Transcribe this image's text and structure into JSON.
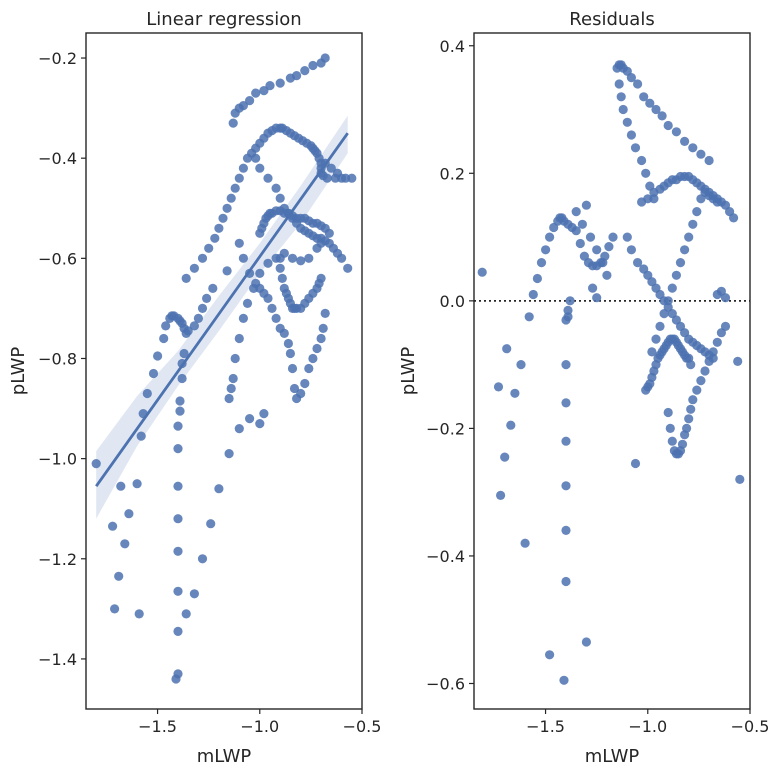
{
  "figure": {
    "colors": {
      "point": "#4c72b0",
      "line": "#4c72b0",
      "band": "#dbe3f1",
      "axes": "#262626",
      "zero_line": "#262626"
    }
  },
  "chart_data": [
    {
      "type": "scatter",
      "title": "Linear regression",
      "xlabel": "mLWP",
      "ylabel": "pLWP",
      "xlim": [
        -1.85,
        -0.5
      ],
      "ylim": [
        -1.5,
        -0.15
      ],
      "xticks": [
        -1.5,
        -1.0,
        -0.5
      ],
      "xtick_labels": [
        "−1.5",
        "−1.0",
        "−0.5"
      ],
      "yticks": [
        -1.4,
        -1.2,
        -1.0,
        -0.8,
        -0.6,
        -0.4,
        -0.2
      ],
      "ytick_labels": [
        "−1.4",
        "−1.2",
        "−1.0",
        "−0.8",
        "−0.6",
        "−0.4",
        "−0.2"
      ],
      "grid": false,
      "regression_line": {
        "x": [
          -1.8,
          -0.57
        ],
        "y": [
          -1.055,
          -0.35
        ]
      },
      "confidence_band": {
        "x": [
          -1.8,
          -1.6,
          -1.4,
          -1.2,
          -1.0,
          -0.8,
          -0.57
        ],
        "lower": [
          -1.12,
          -0.975,
          -0.855,
          -0.745,
          -0.63,
          -0.53,
          -0.39
        ],
        "upper": [
          -0.985,
          -0.875,
          -0.785,
          -0.675,
          -0.57,
          -0.455,
          -0.315
        ]
      },
      "points": {
        "x": [
          -1.8,
          -1.72,
          -1.71,
          -1.69,
          -1.68,
          -1.66,
          -1.64,
          -1.6,
          -1.59,
          -1.58,
          -1.57,
          -1.55,
          -1.52,
          -1.5,
          -1.47,
          -1.46,
          -1.44,
          -1.43,
          -1.42,
          -1.4,
          -1.39,
          -1.38,
          -1.37,
          -1.36,
          -1.35,
          -1.32,
          -1.3,
          -1.28,
          -1.26,
          -1.23,
          -1.16,
          -1.4,
          -1.4,
          -1.4,
          -1.4,
          -1.4,
          -1.4,
          -1.4,
          -1.39,
          -1.39,
          -1.38,
          -1.37,
          -1.38,
          -1.4,
          -1.41,
          -1.36,
          -1.32,
          -1.28,
          -1.24,
          -1.2,
          -1.15,
          -1.1,
          -1.05,
          -1.0,
          -0.98,
          -1.15,
          -1.14,
          -1.13,
          -1.12,
          -1.1,
          -1.08,
          -1.06,
          -1.03,
          -1.0,
          -0.96,
          -0.92,
          -0.88,
          -0.84,
          -0.8,
          -0.76,
          -0.72,
          -0.7,
          -1.13,
          -1.12,
          -1.1,
          -1.08,
          -1.05,
          -1.02,
          -0.98,
          -0.95,
          -0.9,
          -0.85,
          -0.82,
          -0.78,
          -0.74,
          -0.7,
          -0.68,
          -1.02,
          -1.0,
          -0.96,
          -0.92,
          -0.9,
          -0.88,
          -0.86,
          -0.84,
          -0.82,
          -0.8,
          -0.78,
          -0.76,
          -0.74,
          -0.72,
          -0.7,
          -0.68,
          -0.66,
          -0.64,
          -0.62,
          -0.6,
          -0.57,
          -1.1,
          -1.08,
          -1.05,
          -1.02,
          -1.0,
          -0.98,
          -0.96,
          -0.94,
          -0.92,
          -0.9,
          -0.88,
          -0.86,
          -0.85,
          -0.84,
          -0.83,
          -0.82,
          -0.8,
          -0.78,
          -0.76,
          -0.74,
          -0.72,
          -0.7,
          -0.69,
          -0.68,
          -1.0,
          -0.99,
          -0.98,
          -0.97,
          -0.96,
          -0.95,
          -0.94,
          -0.92,
          -0.9,
          -0.88,
          -0.86,
          -0.84,
          -0.82,
          -0.8,
          -0.78,
          -0.76,
          -0.74,
          -0.72,
          -0.7,
          -0.68,
          -0.66,
          -0.9,
          -0.9,
          -0.89,
          -0.88,
          -0.87,
          -0.86,
          -0.85,
          -0.84,
          -0.83,
          -0.82,
          -0.8,
          -0.78,
          -0.76,
          -0.74,
          -0.72,
          -0.71,
          -0.7,
          -0.6,
          -0.62,
          -0.65,
          -0.68,
          -0.55,
          -0.58,
          -0.63,
          -0.67,
          -0.69,
          -0.7,
          -0.7,
          -0.7,
          -0.71,
          -0.72,
          -0.73,
          -0.74,
          -0.75,
          -0.77,
          -0.79,
          -0.81,
          -0.83,
          -0.85,
          -0.87,
          -0.89,
          -0.9,
          -0.92,
          -0.94,
          -0.96,
          -0.98,
          -1.0,
          -1.02,
          -1.04,
          -1.06,
          -1.08,
          -1.1,
          -1.12,
          -1.14,
          -1.16,
          -1.18,
          -1.2,
          -1.22,
          -1.25,
          -1.28,
          -1.32,
          -1.36
        ],
        "y": [
          -1.01,
          -1.135,
          -1.3,
          -1.235,
          -1.055,
          -1.17,
          -1.11,
          -1.05,
          -1.31,
          -0.955,
          -0.91,
          -0.87,
          -0.83,
          -0.795,
          -0.76,
          -0.735,
          -0.72,
          -0.715,
          -0.715,
          -0.72,
          -0.725,
          -0.73,
          -0.74,
          -0.75,
          -0.745,
          -0.735,
          -0.72,
          -0.7,
          -0.68,
          -0.66,
          -0.625,
          -0.935,
          -1.055,
          -1.12,
          -1.185,
          -1.265,
          -1.345,
          -1.43,
          -0.905,
          -0.885,
          -0.84,
          -0.79,
          -0.81,
          -0.98,
          -1.44,
          -1.31,
          -1.27,
          -1.2,
          -1.13,
          -1.06,
          -0.99,
          -0.94,
          -0.92,
          -0.93,
          -0.91,
          -0.88,
          -0.86,
          -0.84,
          -0.8,
          -0.76,
          -0.72,
          -0.69,
          -0.66,
          -0.63,
          -0.61,
          -0.6,
          -0.59,
          -0.6,
          -0.605,
          -0.6,
          -0.58,
          -0.57,
          -0.33,
          -0.31,
          -0.3,
          -0.295,
          -0.285,
          -0.27,
          -0.265,
          -0.255,
          -0.25,
          -0.24,
          -0.235,
          -0.225,
          -0.215,
          -0.21,
          -0.2,
          -0.4,
          -0.42,
          -0.44,
          -0.46,
          -0.48,
          -0.5,
          -0.51,
          -0.52,
          -0.53,
          -0.54,
          -0.545,
          -0.55,
          -0.555,
          -0.56,
          -0.56,
          -0.565,
          -0.57,
          -0.58,
          -0.59,
          -0.6,
          -0.62,
          -0.57,
          -0.6,
          -0.63,
          -0.65,
          -0.66,
          -0.67,
          -0.68,
          -0.7,
          -0.72,
          -0.74,
          -0.75,
          -0.77,
          -0.79,
          -0.82,
          -0.86,
          -0.88,
          -0.87,
          -0.85,
          -0.82,
          -0.8,
          -0.78,
          -0.76,
          -0.74,
          -0.71,
          -0.55,
          -0.54,
          -0.53,
          -0.52,
          -0.515,
          -0.51,
          -0.51,
          -0.505,
          -0.505,
          -0.51,
          -0.51,
          -0.515,
          -0.52,
          -0.52,
          -0.52,
          -0.525,
          -0.53,
          -0.53,
          -0.535,
          -0.54,
          -0.55,
          -0.6,
          -0.62,
          -0.64,
          -0.66,
          -0.67,
          -0.68,
          -0.69,
          -0.7,
          -0.7,
          -0.7,
          -0.7,
          -0.69,
          -0.68,
          -0.67,
          -0.66,
          -0.65,
          -0.64,
          -0.44,
          -0.43,
          -0.42,
          -0.41,
          -0.44,
          -0.44,
          -0.44,
          -0.44,
          -0.435,
          -0.43,
          -0.42,
          -0.41,
          -0.4,
          -0.39,
          -0.385,
          -0.38,
          -0.375,
          -0.37,
          -0.365,
          -0.36,
          -0.355,
          -0.35,
          -0.345,
          -0.34,
          -0.34,
          -0.34,
          -0.345,
          -0.35,
          -0.36,
          -0.37,
          -0.38,
          -0.39,
          -0.4,
          -0.42,
          -0.44,
          -0.46,
          -0.48,
          -0.5,
          -0.52,
          -0.54,
          -0.56,
          -0.58,
          -0.6,
          -0.62,
          -0.64
        ]
      }
    },
    {
      "type": "scatter",
      "title": "Residuals",
      "xlabel": "mLWP",
      "ylabel": "pLWP",
      "xlim": [
        -1.85,
        -0.5
      ],
      "ylim": [
        -0.64,
        0.42
      ],
      "xticks": [
        -1.5,
        -1.0,
        -0.5
      ],
      "xtick_labels": [
        "−1.5",
        "−1.0",
        "−0.5"
      ],
      "yticks": [
        -0.6,
        -0.4,
        -0.2,
        0.0,
        0.2,
        0.4
      ],
      "ytick_labels": [
        "−0.6",
        "−0.4",
        "−0.2",
        "0.0",
        "0.2",
        "0.4"
      ],
      "grid": false,
      "zero_line": {
        "y": 0.0,
        "style": "dotted"
      },
      "points": {
        "x": [
          -1.81,
          -1.73,
          -1.72,
          -1.7,
          -1.69,
          -1.67,
          -1.65,
          -1.62,
          -1.6,
          -1.58,
          -1.56,
          -1.54,
          -1.52,
          -1.5,
          -1.48,
          -1.46,
          -1.44,
          -1.43,
          -1.42,
          -1.41,
          -1.39,
          -1.37,
          -1.35,
          -1.33,
          -1.31,
          -1.29,
          -1.27,
          -1.25,
          -1.23,
          -1.21,
          -1.19,
          -1.17,
          -1.4,
          -1.4,
          -1.4,
          -1.4,
          -1.4,
          -1.4,
          -1.4,
          -1.39,
          -1.39,
          -1.38,
          -1.41,
          -1.48,
          -1.3,
          -1.15,
          -1.14,
          -1.13,
          -1.12,
          -1.1,
          -1.08,
          -1.05,
          -1.02,
          -0.99,
          -0.96,
          -0.93,
          -0.9,
          -0.86,
          -0.82,
          -0.78,
          -0.74,
          -0.7,
          -1.14,
          -1.13,
          -1.12,
          -1.1,
          -1.08,
          -1.06,
          -1.03,
          -1.01,
          -0.99,
          -0.97,
          -1.03,
          -1.0,
          -0.97,
          -0.94,
          -0.92,
          -0.9,
          -0.88,
          -0.86,
          -0.84,
          -0.82,
          -0.8,
          -0.78,
          -0.76,
          -0.74,
          -0.72,
          -0.7,
          -0.68,
          -0.66,
          -0.64,
          -0.62,
          -0.6,
          -0.58,
          -1.1,
          -1.08,
          -1.05,
          -1.02,
          -1.0,
          -0.98,
          -0.96,
          -0.94,
          -0.92,
          -0.9,
          -0.88,
          -0.86,
          -0.84,
          -0.82,
          -0.8,
          -0.78,
          -0.76,
          -0.74,
          -0.72,
          -0.7,
          -0.68,
          -1.01,
          -1.0,
          -0.99,
          -0.98,
          -0.97,
          -0.96,
          -0.95,
          -0.94,
          -0.93,
          -0.92,
          -0.91,
          -0.9,
          -0.89,
          -0.88,
          -0.87,
          -0.86,
          -0.85,
          -0.84,
          -0.83,
          -0.82,
          -0.81,
          -0.8,
          -0.79,
          -0.9,
          -0.89,
          -0.88,
          -0.87,
          -0.86,
          -0.85,
          -0.84,
          -0.83,
          -0.82,
          -0.81,
          -0.8,
          -0.79,
          -0.78,
          -0.76,
          -0.74,
          -0.72,
          -0.7,
          -0.68,
          -0.66,
          -0.64,
          -0.62,
          -0.66,
          -0.64,
          -0.62,
          -0.56,
          -0.55,
          -1.06,
          -0.98,
          -0.96,
          -0.94,
          -0.92,
          -0.9,
          -0.88,
          -0.86,
          -0.84,
          -0.82,
          -0.8,
          -0.78,
          -0.76,
          -0.74,
          -0.72,
          -0.7,
          -0.68,
          -0.66,
          -1.3,
          -1.35,
          -1.32,
          -1.28,
          -1.25,
          -1.22,
          -1.2,
          -1.27,
          -1.25
        ],
        "y": [
          0.045,
          -0.135,
          -0.305,
          -0.245,
          -0.075,
          -0.195,
          -0.145,
          -0.1,
          -0.38,
          -0.025,
          0.01,
          0.035,
          0.06,
          0.08,
          0.1,
          0.115,
          0.125,
          0.13,
          0.13,
          0.125,
          0.12,
          0.115,
          0.11,
          0.09,
          0.07,
          0.06,
          0.055,
          0.055,
          0.06,
          0.07,
          0.085,
          0.1,
          -0.03,
          -0.1,
          -0.16,
          -0.22,
          -0.29,
          -0.36,
          -0.44,
          -0.025,
          -0.015,
          0.0,
          -0.595,
          -0.555,
          -0.535,
          0.365,
          0.37,
          0.37,
          0.365,
          0.36,
          0.35,
          0.34,
          0.32,
          0.31,
          0.3,
          0.29,
          0.275,
          0.265,
          0.25,
          0.24,
          0.23,
          0.22,
          0.34,
          0.32,
          0.3,
          0.28,
          0.26,
          0.24,
          0.22,
          0.2,
          0.18,
          0.16,
          0.155,
          0.16,
          0.17,
          0.175,
          0.18,
          0.185,
          0.19,
          0.19,
          0.195,
          0.195,
          0.195,
          0.19,
          0.185,
          0.18,
          0.175,
          0.17,
          0.165,
          0.16,
          0.155,
          0.15,
          0.14,
          0.13,
          0.1,
          0.08,
          0.06,
          0.05,
          0.04,
          0.03,
          0.02,
          0.01,
          0.0,
          -0.01,
          -0.02,
          -0.03,
          -0.04,
          -0.05,
          -0.06,
          -0.065,
          -0.07,
          -0.075,
          -0.08,
          -0.085,
          -0.09,
          -0.14,
          -0.135,
          -0.13,
          -0.12,
          -0.11,
          -0.1,
          -0.09,
          -0.085,
          -0.08,
          -0.075,
          -0.07,
          -0.065,
          -0.06,
          -0.06,
          -0.06,
          -0.065,
          -0.07,
          -0.075,
          -0.08,
          -0.085,
          -0.09,
          -0.09,
          -0.1,
          -0.175,
          -0.2,
          -0.22,
          -0.235,
          -0.24,
          -0.24,
          -0.235,
          -0.225,
          -0.21,
          -0.2,
          -0.185,
          -0.17,
          -0.155,
          -0.14,
          -0.125,
          -0.11,
          -0.095,
          -0.08,
          -0.065,
          -0.05,
          -0.04,
          0.01,
          0.015,
          0.005,
          -0.095,
          -0.28,
          -0.255,
          -0.08,
          -0.06,
          -0.04,
          -0.02,
          0.0,
          0.02,
          0.04,
          0.06,
          0.08,
          0.1,
          0.12,
          0.14,
          0.16,
          0.17,
          0.165,
          0.16,
          0.155,
          0.15,
          0.14,
          0.12,
          0.1,
          0.08,
          0.06,
          0.04,
          0.02,
          0.005
        ]
      }
    }
  ]
}
